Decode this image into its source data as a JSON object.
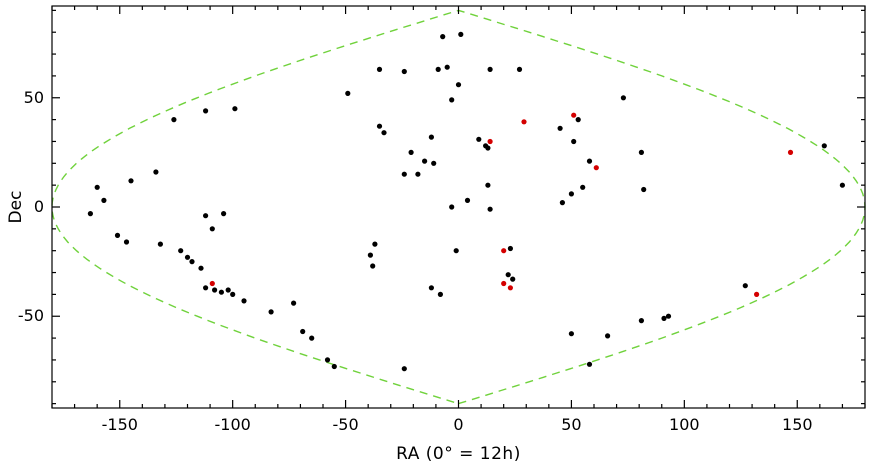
{
  "chart_data": {
    "type": "scatter",
    "title": "",
    "xlabel": "RA (0° = 12h)",
    "ylabel": "Dec",
    "xlim": [
      -180,
      180
    ],
    "ylim": [
      -92,
      92
    ],
    "grid": false,
    "background": "#ffffff",
    "frame_color": "#000000",
    "x_ticks": {
      "major": [
        -150,
        -100,
        -50,
        0,
        50,
        100,
        150
      ],
      "labels": [
        "-150",
        "-100",
        "-50",
        "0",
        "50",
        "100",
        "150"
      ],
      "minor_step": 10
    },
    "y_ticks": {
      "major": [
        -50,
        0,
        50
      ],
      "labels": [
        "-50",
        "0",
        "50"
      ],
      "minor_step": 10
    },
    "boundary": {
      "name": "projection-boundary",
      "shape": "lens",
      "equation": "RA = ±180×cos(Dec)",
      "color": "#70d23c",
      "style": "dashed",
      "dec_extent": [
        -90,
        90
      ]
    },
    "series": [
      {
        "name": "sources-black",
        "marker": "circle",
        "color": "#000000",
        "points": [
          [
            -7,
            78
          ],
          [
            1,
            79
          ],
          [
            -35,
            63
          ],
          [
            -24,
            62
          ],
          [
            -9,
            63
          ],
          [
            -5,
            64
          ],
          [
            14,
            63
          ],
          [
            27,
            63
          ],
          [
            -49,
            52
          ],
          [
            0,
            56
          ],
          [
            -3,
            49
          ],
          [
            73,
            50
          ],
          [
            53,
            40
          ],
          [
            -126,
            40
          ],
          [
            -112,
            44
          ],
          [
            -99,
            45
          ],
          [
            -35,
            37
          ],
          [
            -33,
            34
          ],
          [
            -12,
            32
          ],
          [
            -21,
            25
          ],
          [
            -15,
            21
          ],
          [
            -11,
            20
          ],
          [
            -24,
            15
          ],
          [
            -18,
            15
          ],
          [
            9,
            31
          ],
          [
            12,
            28
          ],
          [
            13,
            27
          ],
          [
            45,
            36
          ],
          [
            51,
            30
          ],
          [
            58,
            21
          ],
          [
            81,
            25
          ],
          [
            162,
            28
          ],
          [
            170,
            10
          ],
          [
            -160,
            9
          ],
          [
            -157,
            3
          ],
          [
            -163,
            -3
          ],
          [
            -145,
            12
          ],
          [
            -134,
            16
          ],
          [
            -151,
            -13
          ],
          [
            -147,
            -16
          ],
          [
            -132,
            -17
          ],
          [
            -112,
            -4
          ],
          [
            -104,
            -3
          ],
          [
            -109,
            -10
          ],
          [
            13,
            10
          ],
          [
            4,
            3
          ],
          [
            -3,
            0
          ],
          [
            14,
            -1
          ],
          [
            46,
            2
          ],
          [
            50,
            6
          ],
          [
            55,
            9
          ],
          [
            82,
            8
          ],
          [
            -37,
            -17
          ],
          [
            -39,
            -22
          ],
          [
            -38,
            -27
          ],
          [
            -1,
            -20
          ],
          [
            23,
            -19
          ],
          [
            -12,
            -37
          ],
          [
            -8,
            -40
          ],
          [
            22,
            -31
          ],
          [
            24,
            -33
          ],
          [
            -123,
            -20
          ],
          [
            -120,
            -23
          ],
          [
            -118,
            -25
          ],
          [
            -114,
            -28
          ],
          [
            -112,
            -37
          ],
          [
            -108,
            -38
          ],
          [
            -105,
            -39
          ],
          [
            -102,
            -38
          ],
          [
            -100,
            -40
          ],
          [
            -95,
            -43
          ],
          [
            -83,
            -48
          ],
          [
            -73,
            -44
          ],
          [
            -69,
            -57
          ],
          [
            -65,
            -60
          ],
          [
            -58,
            -70
          ],
          [
            -55,
            -73
          ],
          [
            -24,
            -74
          ],
          [
            50,
            -58
          ],
          [
            66,
            -59
          ],
          [
            81,
            -52
          ],
          [
            91,
            -51
          ],
          [
            93,
            -50
          ],
          [
            58,
            -72
          ],
          [
            127,
            -36
          ]
        ]
      },
      {
        "name": "sources-red",
        "marker": "circle",
        "color": "#d40000",
        "points": [
          [
            51,
            42
          ],
          [
            29,
            39
          ],
          [
            14,
            30
          ],
          [
            61,
            18
          ],
          [
            147,
            25
          ],
          [
            20,
            -20
          ],
          [
            20,
            -35
          ],
          [
            23,
            -37
          ],
          [
            -109,
            -35
          ],
          [
            132,
            -40
          ]
        ]
      }
    ]
  }
}
